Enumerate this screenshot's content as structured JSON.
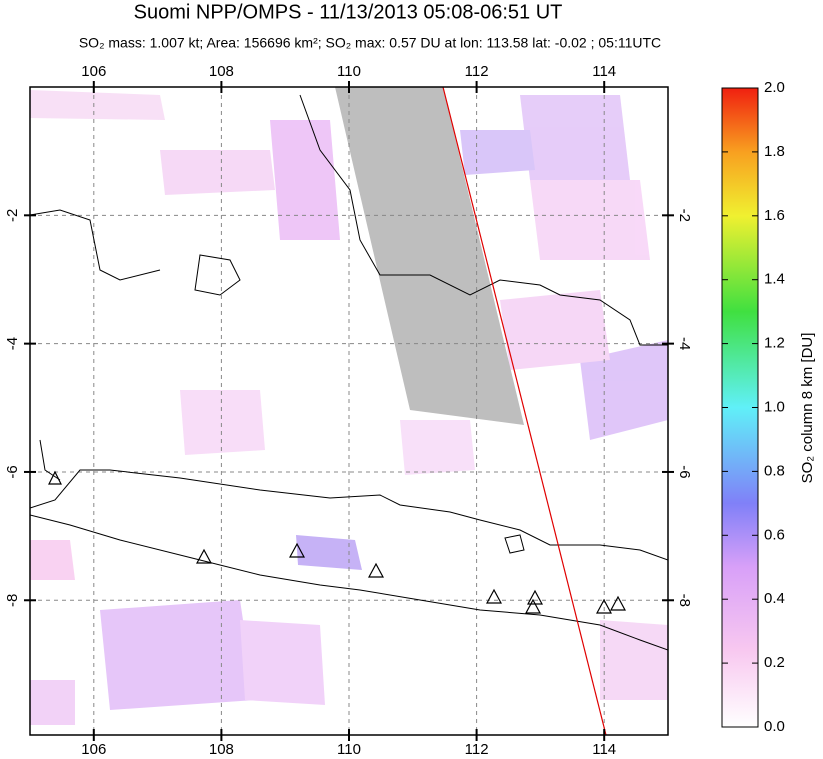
{
  "title": "Suomi NPP/OMPS - 11/13/2013 05:08-06:51 UT",
  "subtitle": "SO₂ mass: 1.007 kt; Area: 156696 km²; SO₂ max: 0.57 DU at lon: 113.58 lat: -0.02 ; 05:11UTC",
  "map": {
    "xlim": [
      105,
      115
    ],
    "xticks": [
      106,
      108,
      110,
      112,
      114
    ],
    "ylim": [
      0,
      -10.1
    ],
    "yticks": [
      -2,
      -4,
      -6,
      -8
    ]
  },
  "colorbar": {
    "label": "SO₂ column 8 km [DU]",
    "lim": [
      0,
      2
    ],
    "ticks": [
      {
        "value": 0,
        "label": "0.0"
      },
      0.2,
      0.4,
      0.6,
      0.8,
      {
        "value": 1,
        "label": "1.0"
      },
      1.2,
      1.4,
      1.6,
      1.8,
      {
        "value": 2,
        "label": "2.0"
      }
    ]
  }
}
